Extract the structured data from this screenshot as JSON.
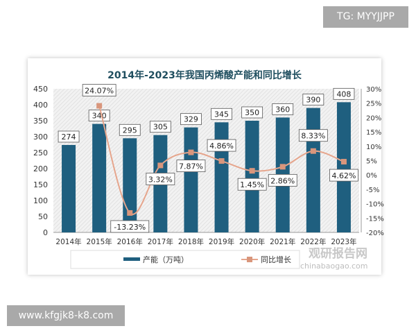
{
  "watermarks": {
    "tg": "TG: MYYJJPP",
    "site": "www.kfgjk8-k8.com",
    "logo_cn": "观研报告网",
    "logo_en": "chinabaogao.com"
  },
  "chart_data": {
    "type": "bar+line",
    "title": "2014年-2023年我国丙烯酸产能和同比增长",
    "categories": [
      "2014年",
      "2015年",
      "2016年",
      "2017年",
      "2018年",
      "2019年",
      "2020年",
      "2021年",
      "2022年",
      "2023年"
    ],
    "series": [
      {
        "name": "产能（万吨）",
        "type": "bar",
        "axis": "left",
        "color": "#1f5f7f",
        "values": [
          274,
          340,
          295,
          305,
          329,
          345,
          350,
          360,
          390,
          408
        ],
        "labels": [
          "274",
          "340",
          "295",
          "305",
          "329",
          "345",
          "350",
          "360",
          "390",
          "408"
        ]
      },
      {
        "name": "同比增长",
        "type": "line",
        "axis": "right",
        "color": "#e6a58c",
        "values": [
          null,
          24.07,
          -13.23,
          3.32,
          7.87,
          4.86,
          1.45,
          2.86,
          8.33,
          4.62
        ],
        "labels": [
          "",
          "24.07%",
          "-13.23%",
          "3.32%",
          "7.87%",
          "4.86%",
          "1.45%",
          "2.86%",
          "8.33%",
          "4.62%"
        ]
      }
    ],
    "left_axis": {
      "range": [
        0,
        450
      ],
      "ticks": [
        "0",
        "50",
        "100",
        "150",
        "200",
        "250",
        "300",
        "350",
        "400",
        "450"
      ]
    },
    "right_axis": {
      "range": [
        -20,
        30
      ],
      "ticks": [
        "-20%",
        "-15%",
        "-10%",
        "-5%",
        "0%",
        "5%",
        "10%",
        "15%",
        "20%",
        "25%",
        "30%"
      ]
    },
    "legend": "bottom"
  }
}
